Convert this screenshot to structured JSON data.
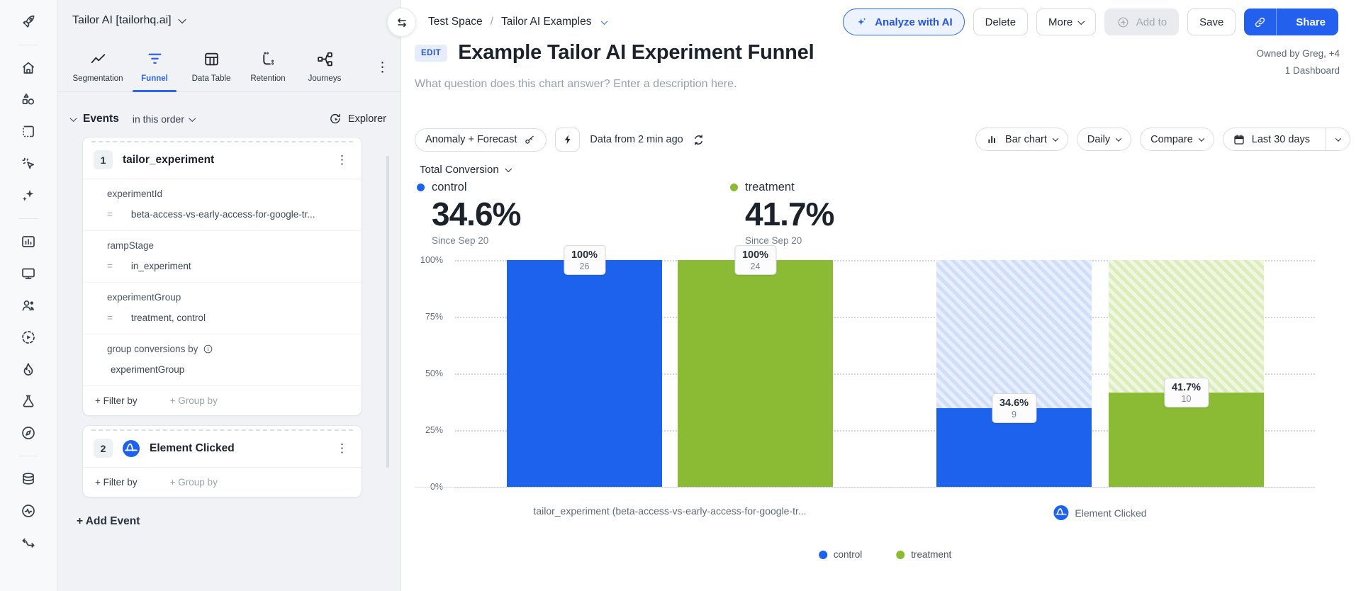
{
  "workspace": {
    "name": "Tailor AI [tailorhq.ai]"
  },
  "rail_icons": [
    "rocket",
    "home",
    "shapes",
    "dashed-board",
    "click-cursor",
    "ai-sparkles",
    "chart-board",
    "screen",
    "users",
    "session-replay",
    "flame",
    "experiment-flask",
    "compass",
    "database",
    "data-health",
    "data-flow"
  ],
  "tabs": [
    {
      "label": "Segmentation"
    },
    {
      "label": "Funnel"
    },
    {
      "label": "Data Table"
    },
    {
      "label": "Retention"
    },
    {
      "label": "Journeys"
    }
  ],
  "events_panel": {
    "section_title": "Events",
    "order_selector": "in this order",
    "explorer_label": "Explorer",
    "events": [
      {
        "index": "1",
        "name": "tailor_experiment",
        "properties": [
          {
            "key": "experimentId",
            "op": "=",
            "value": "beta-access-vs-early-access-for-google-tr..."
          },
          {
            "key": "rampStage",
            "op": "=",
            "value": "in_experiment"
          },
          {
            "key": "experimentGroup",
            "op": "=",
            "value": "treatment, control"
          }
        ],
        "group_conversions_label": "group conversions by",
        "group_conversions_value": "experimentGroup",
        "filter_by_label": "+ Filter by",
        "group_by_label": "+ Group by"
      },
      {
        "index": "2",
        "name": "Element Clicked",
        "filter_by_label": "+ Filter by",
        "group_by_label": "+ Group by"
      }
    ],
    "add_event_label": "+ Add Event"
  },
  "topbar": {
    "breadcrumb": {
      "space": "Test Space",
      "separator": "/",
      "collection": "Tailor AI Examples"
    },
    "analyze_ai_label": "Analyze with AI",
    "delete_label": "Delete",
    "more_label": "More",
    "add_to_label": "Add to",
    "save_label": "Save",
    "share_label": "Share"
  },
  "header": {
    "edit_badge": "EDIT",
    "title": "Example Tailor AI Experiment Funnel",
    "description_placeholder": "What question does this chart answer? Enter a description here.",
    "owned_by": "Owned by Greg, +4",
    "dashboard_count": "1 Dashboard"
  },
  "controls": {
    "anomaly_forecast_label": "Anomaly + Forecast",
    "freshness_label": "Data from 2 min ago",
    "chart_type_label": "Bar chart",
    "granularity_label": "Daily",
    "compare_label": "Compare",
    "date_range_label": "Last 30 days"
  },
  "colors": {
    "accent_blue": "#2c63f0",
    "share_bg": "#2360ee"
  },
  "chart_data": {
    "type": "bar",
    "title": "Total Conversion",
    "categories": [
      {
        "label": "tailor_experiment (beta-access-vs-early-access-for-google-tr...",
        "icon": null
      },
      {
        "label": "Element Clicked",
        "icon": "amplitude-logo"
      }
    ],
    "series": [
      {
        "name": "control",
        "color": "#1d62ec",
        "hatch_light": "#cfdefb",
        "hatch_lighter": "#e9f0fd",
        "values_pct": [
          100,
          34.6
        ],
        "counts": [
          26,
          9
        ]
      },
      {
        "name": "treatment",
        "color": "#8bbb34",
        "hatch_light": "#dcecba",
        "hatch_lighter": "#f0f7e0",
        "values_pct": [
          100,
          41.7
        ],
        "counts": [
          24,
          10
        ]
      }
    ],
    "y_ticks": [
      "100%",
      "75%",
      "50%",
      "25%",
      "0%"
    ],
    "ylim": [
      0,
      100
    ],
    "grid": "dotted-horizontal",
    "legend_position": "bottom-center",
    "summary": [
      {
        "series": "control",
        "value": "34.6%",
        "caption": "Since Sep 20"
      },
      {
        "series": "treatment",
        "value": "41.7%",
        "caption": "Since Sep 20"
      }
    ]
  }
}
